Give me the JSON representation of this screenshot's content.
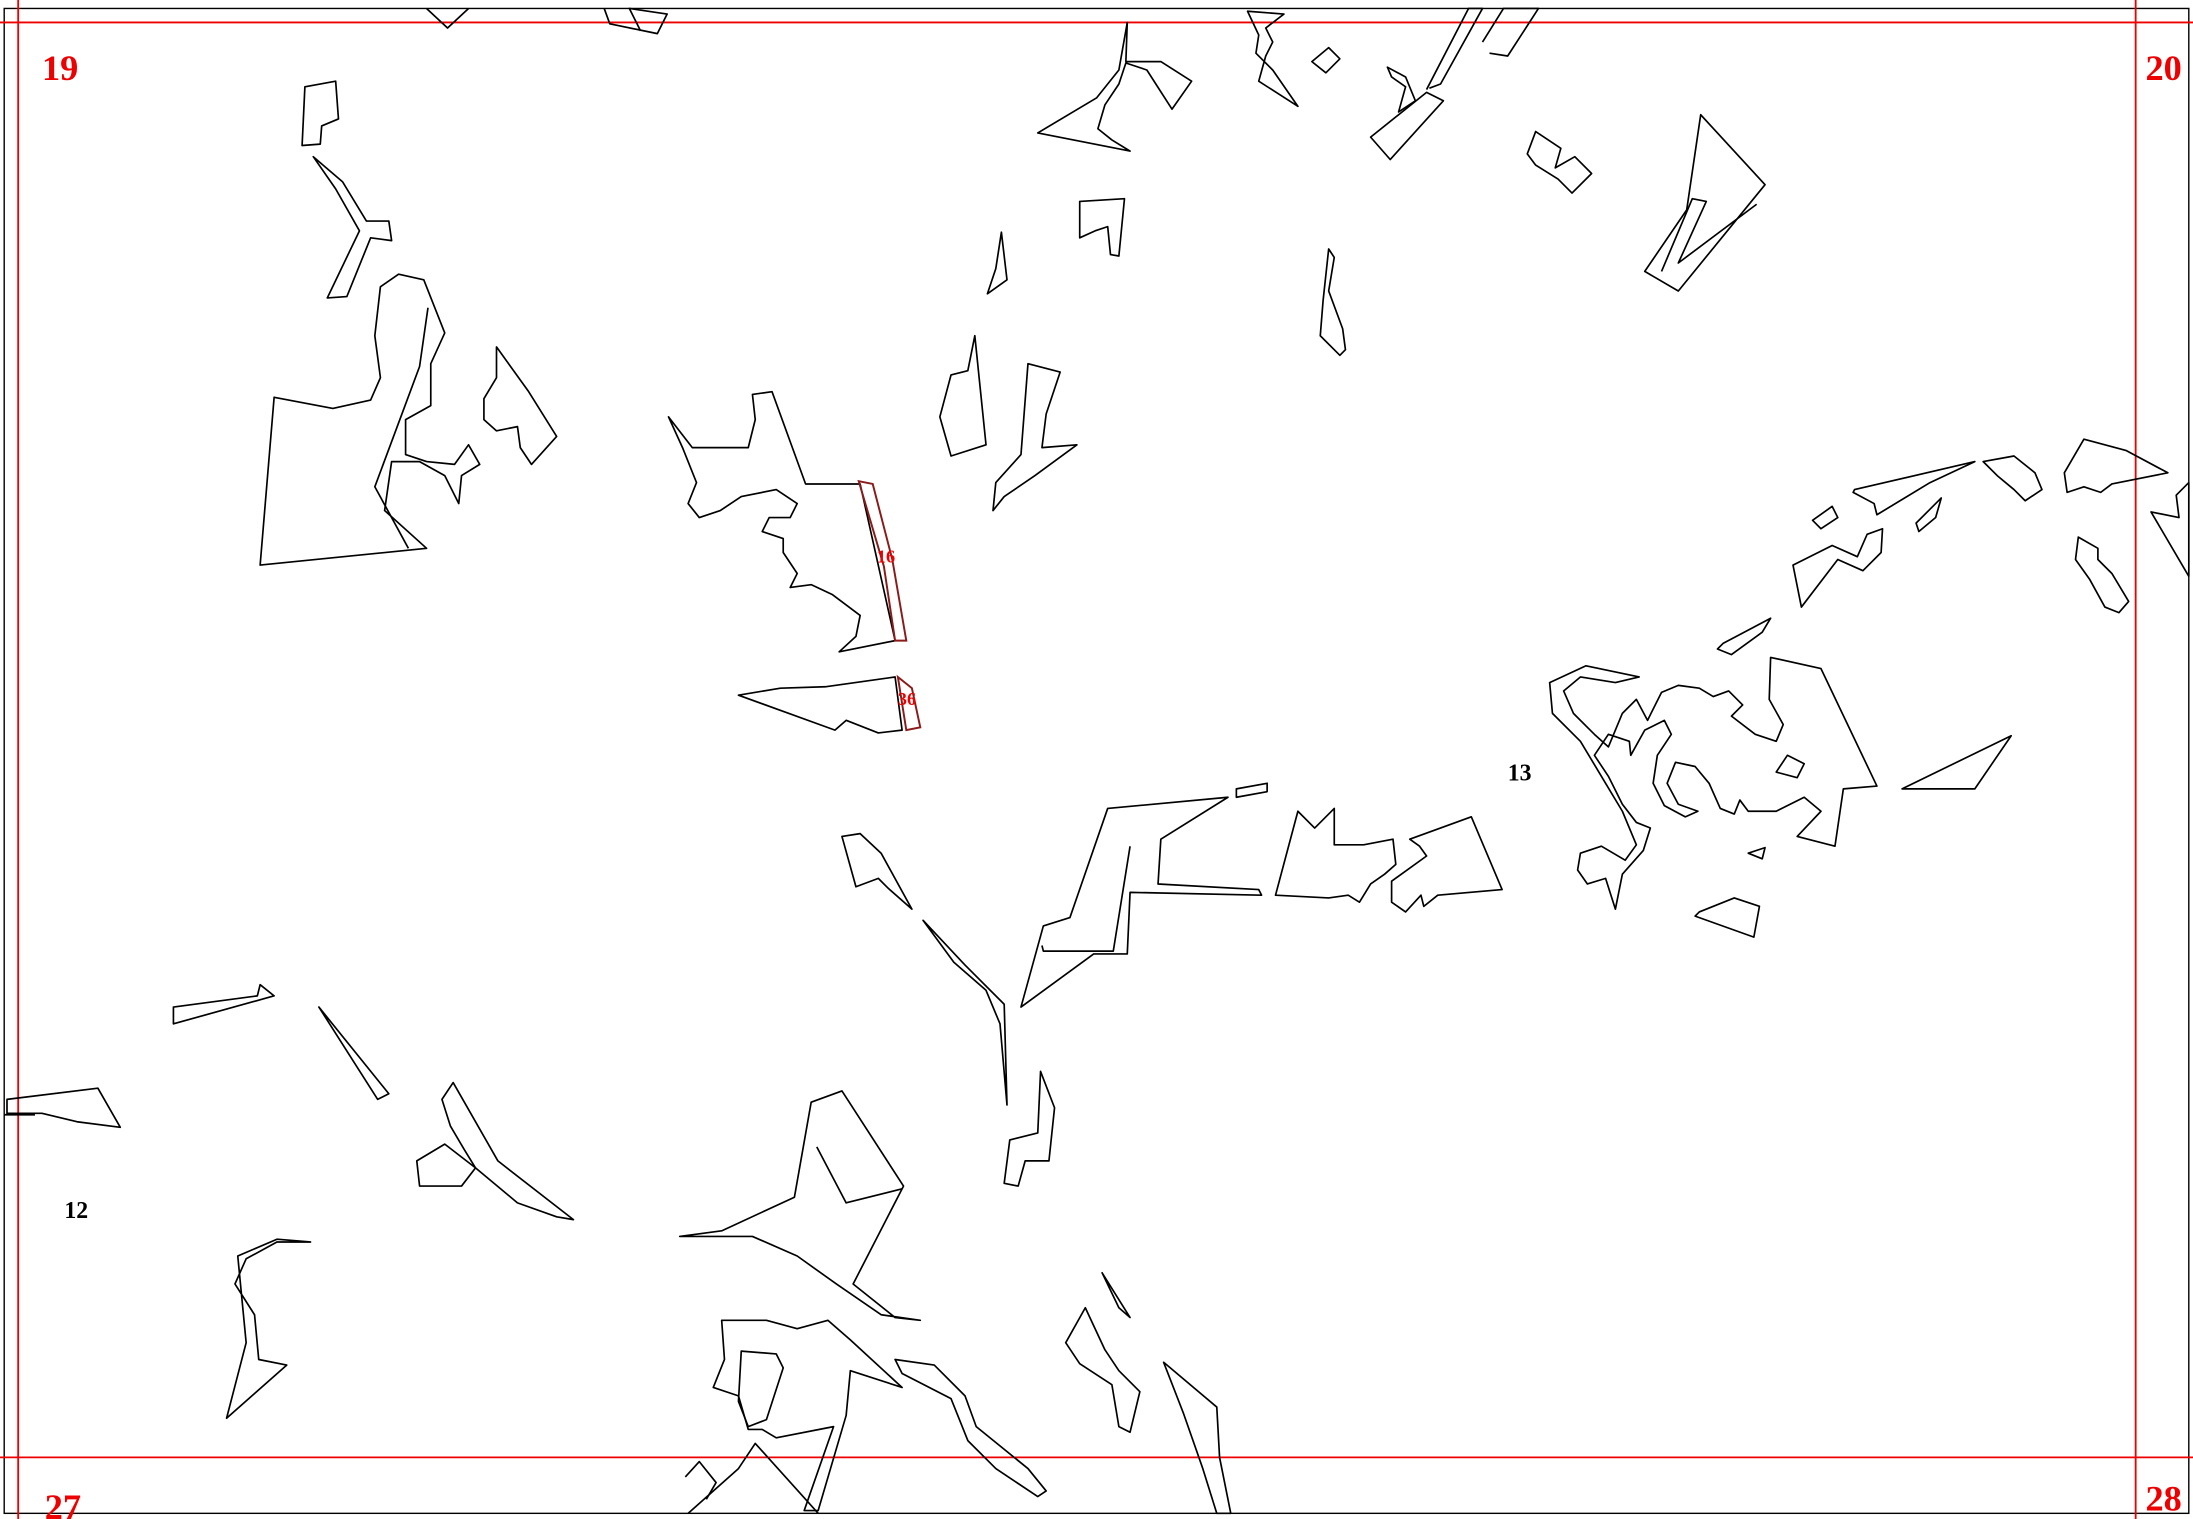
{
  "sheet_labels": [
    "19",
    "20",
    "27",
    "28"
  ],
  "parcel_labels": [
    "12",
    "13"
  ],
  "highlighted_parcels": [
    "16",
    "36"
  ]
}
